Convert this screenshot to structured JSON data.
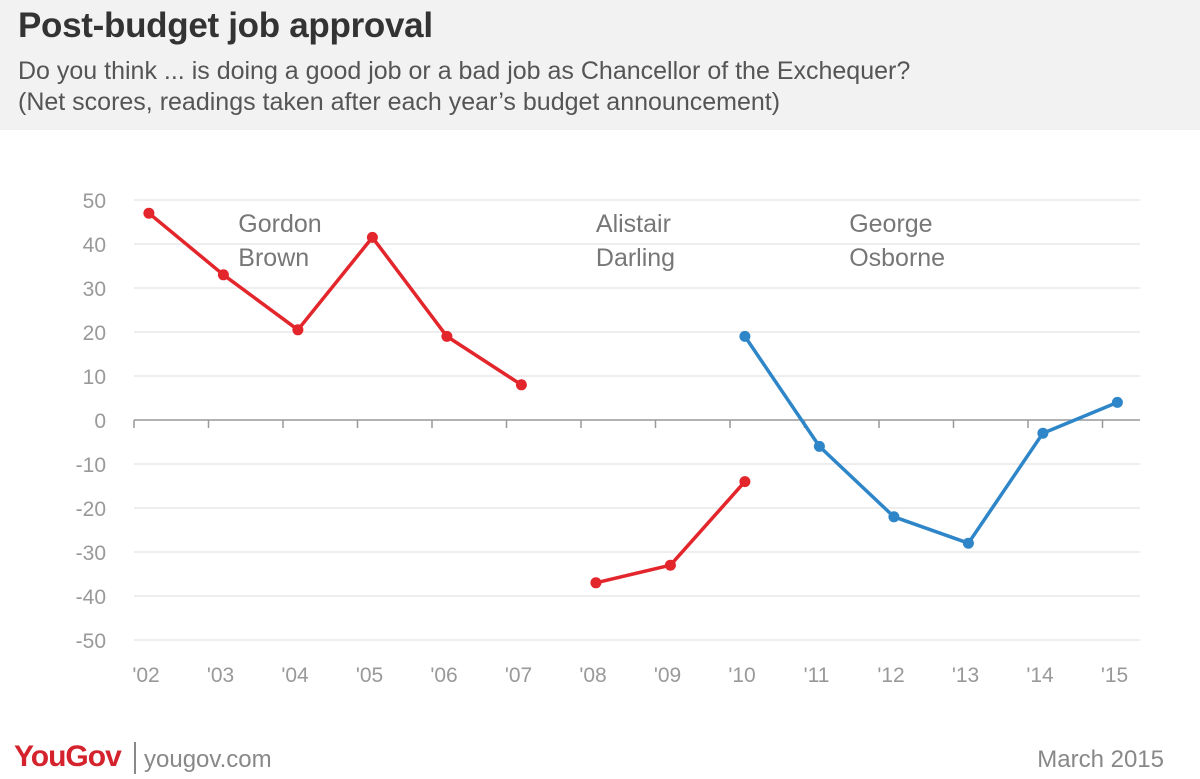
{
  "header": {
    "title": "Post-budget job approval",
    "subtitle_line1": "Do you think ... is doing a good job or a bad job as Chancellor of the Exchequer?",
    "subtitle_line2": "(Net scores, readings taken after each year’s budget announcement)"
  },
  "footer": {
    "brand": "YouGov",
    "site": "yougov.com",
    "date": "March 2015"
  },
  "chart_data": {
    "type": "line",
    "title": "",
    "xlabel": "",
    "ylabel": "",
    "x_ticks": [
      "'02",
      "'03",
      "'04",
      "'05",
      "'06",
      "'07",
      "'08",
      "'09",
      "'10",
      "'11",
      "'12",
      "'13",
      "'14",
      "'15"
    ],
    "y_ticks": [
      50,
      40,
      30,
      20,
      10,
      0,
      -10,
      -20,
      -30,
      -40,
      -50
    ],
    "ylim": [
      -50,
      50
    ],
    "grid": true,
    "colors": {
      "red": "#e3262b",
      "blue": "#2e86c8"
    },
    "annotations": [
      {
        "lines": [
          "Gordon",
          "Brown"
        ],
        "x": 2003.4,
        "y": 44
      },
      {
        "lines": [
          "Alistair",
          "Darling"
        ],
        "x": 2008.2,
        "y": 44
      },
      {
        "lines": [
          "George",
          "Osborne"
        ],
        "x": 2011.6,
        "y": 44
      }
    ],
    "series": [
      {
        "color": "red",
        "points": [
          [
            2002.2,
            47
          ],
          [
            2003.2,
            33
          ],
          [
            2004.2,
            20.5
          ],
          [
            2005.2,
            41.5
          ],
          [
            2006.2,
            19
          ],
          [
            2007.2,
            8
          ]
        ]
      },
      {
        "color": "red",
        "points": [
          [
            2008.2,
            -37
          ],
          [
            2009.2,
            -33
          ],
          [
            2010.2,
            -14
          ]
        ]
      },
      {
        "color": "blue",
        "points": [
          [
            2010.2,
            19
          ],
          [
            2011.2,
            -6
          ],
          [
            2012.2,
            -22
          ],
          [
            2013.2,
            -28
          ],
          [
            2014.2,
            -3
          ],
          [
            2015.2,
            4
          ]
        ]
      }
    ]
  }
}
